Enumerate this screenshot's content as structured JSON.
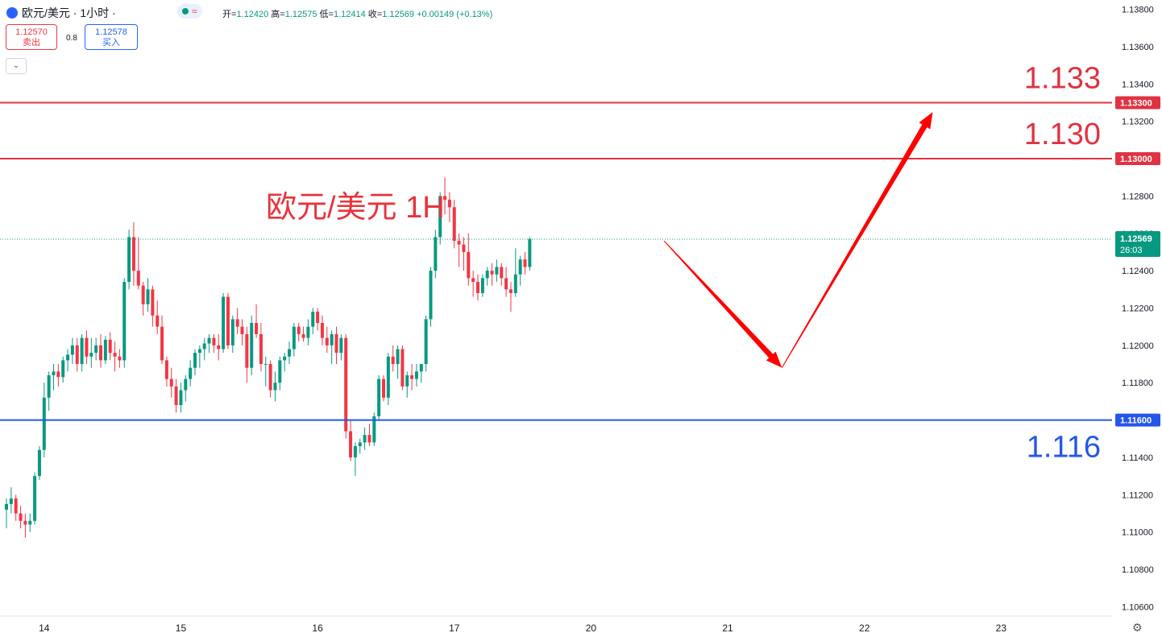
{
  "header": {
    "symbol": "欧元/美元 · 1小时 ·",
    "status_icon": "≈",
    "open_label": "开=",
    "open": "1.12420",
    "high_label": "高=",
    "high": "1.12575",
    "low_label": "低=",
    "low": "1.12414",
    "close_label": "收=",
    "close": "1.12569",
    "change": "+0.00149 (+0.13%)"
  },
  "trade": {
    "sell_price": "1.12570",
    "sell_label": "卖出",
    "spread": "0.8",
    "buy_price": "1.12578",
    "buy_label": "买入"
  },
  "collapse_icon": "chevron-down-icon",
  "colors": {
    "up": "#089981",
    "down": "#f23645",
    "resistance": "#e03341",
    "support": "#2456e8",
    "arrow": "#ff0000"
  },
  "chart_data": {
    "type": "candlestick",
    "title": "欧元/美元 1H",
    "yrange": [
      1.1055,
      1.1385
    ],
    "y_ticks": [
      "1.13800",
      "1.13600",
      "1.13400",
      "1.13200",
      "1.13000",
      "1.12800",
      "1.12600",
      "1.12400",
      "1.12200",
      "1.12000",
      "1.11800",
      "1.11600",
      "1.11400",
      "1.11200",
      "1.11000",
      "1.10800",
      "1.10600"
    ],
    "x_ticks": [
      "14",
      "15",
      "16",
      "17",
      "20",
      "21",
      "22",
      "23"
    ],
    "x_ticks_bar": [
      8,
      37,
      66,
      95,
      124,
      153,
      182,
      211
    ],
    "last_price": "1.12569",
    "countdown": "26:03",
    "levels": [
      {
        "value": 1.133,
        "label": "1.13300",
        "annotation": "1.133",
        "kind": "resistance"
      },
      {
        "value": 1.13,
        "label": "1.13000",
        "annotation": "1.130",
        "kind": "resistance"
      },
      {
        "value": 1.116,
        "label": "1.11600",
        "annotation": "1.116",
        "kind": "support"
      }
    ],
    "forecast_path": [
      {
        "bar": 139.5,
        "price": 1.1256
      },
      {
        "bar": 164.5,
        "price": 1.1188
      },
      {
        "bar": 196.5,
        "price": 1.1325
      }
    ],
    "candles": [
      [
        1.1112,
        1.1118,
        1.1102,
        1.1115
      ],
      [
        1.1115,
        1.1124,
        1.111,
        1.1118
      ],
      [
        1.1118,
        1.112,
        1.1106,
        1.111
      ],
      [
        1.111,
        1.1114,
        1.1102,
        1.1106
      ],
      [
        1.1106,
        1.111,
        1.1097,
        1.1104
      ],
      [
        1.1104,
        1.111,
        1.11,
        1.1106
      ],
      [
        1.1106,
        1.1132,
        1.1104,
        1.113
      ],
      [
        1.113,
        1.1146,
        1.1128,
        1.1144
      ],
      [
        1.1144,
        1.118,
        1.114,
        1.1172
      ],
      [
        1.1172,
        1.1186,
        1.1165,
        1.1184
      ],
      [
        1.1184,
        1.119,
        1.1176,
        1.1186
      ],
      [
        1.1186,
        1.119,
        1.1178,
        1.1183
      ],
      [
        1.1183,
        1.1194,
        1.118,
        1.1192
      ],
      [
        1.1192,
        1.1198,
        1.1186,
        1.1195
      ],
      [
        1.1195,
        1.1204,
        1.119,
        1.12
      ],
      [
        1.12,
        1.1204,
        1.1186,
        1.119
      ],
      [
        1.119,
        1.1206,
        1.1186,
        1.1204
      ],
      [
        1.1204,
        1.1208,
        1.119,
        1.1194
      ],
      [
        1.1194,
        1.1204,
        1.1188,
        1.1196
      ],
      [
        1.1196,
        1.1204,
        1.1192,
        1.12
      ],
      [
        1.12,
        1.1206,
        1.1188,
        1.1192
      ],
      [
        1.1192,
        1.1205,
        1.119,
        1.1203
      ],
      [
        1.1203,
        1.1207,
        1.1192,
        1.1196
      ],
      [
        1.1196,
        1.1202,
        1.1186,
        1.1194
      ],
      [
        1.1194,
        1.1198,
        1.1188,
        1.1192
      ],
      [
        1.1192,
        1.1236,
        1.1188,
        1.1234
      ],
      [
        1.1234,
        1.1262,
        1.123,
        1.1258
      ],
      [
        1.1258,
        1.1266,
        1.1232,
        1.124
      ],
      [
        1.124,
        1.1258,
        1.123,
        1.1232
      ],
      [
        1.1232,
        1.1234,
        1.1216,
        1.1222
      ],
      [
        1.1222,
        1.1236,
        1.1218,
        1.123
      ],
      [
        1.123,
        1.1232,
        1.121,
        1.1216
      ],
      [
        1.1216,
        1.1224,
        1.1206,
        1.121
      ],
      [
        1.121,
        1.1216,
        1.119,
        1.1192
      ],
      [
        1.1192,
        1.1194,
        1.1178,
        1.1182
      ],
      [
        1.1182,
        1.1188,
        1.1172,
        1.1178
      ],
      [
        1.1178,
        1.1182,
        1.1164,
        1.1168
      ],
      [
        1.1168,
        1.118,
        1.1164,
        1.1176
      ],
      [
        1.1176,
        1.1184,
        1.117,
        1.1182
      ],
      [
        1.1182,
        1.1192,
        1.1178,
        1.1188
      ],
      [
        1.1188,
        1.1198,
        1.1184,
        1.1196
      ],
      [
        1.1196,
        1.12,
        1.1188,
        1.1198
      ],
      [
        1.1198,
        1.1204,
        1.1192,
        1.1201
      ],
      [
        1.1201,
        1.1206,
        1.1196,
        1.1204
      ],
      [
        1.1204,
        1.1206,
        1.1196,
        1.12
      ],
      [
        1.12,
        1.1206,
        1.1192,
        1.1198
      ],
      [
        1.1198,
        1.1228,
        1.1196,
        1.1226
      ],
      [
        1.1226,
        1.1228,
        1.1198,
        1.12
      ],
      [
        1.12,
        1.1216,
        1.1196,
        1.1214
      ],
      [
        1.1214,
        1.122,
        1.1206,
        1.121
      ],
      [
        1.121,
        1.1214,
        1.12,
        1.1206
      ],
      [
        1.1206,
        1.121,
        1.118,
        1.1188
      ],
      [
        1.1188,
        1.1216,
        1.1184,
        1.1212
      ],
      [
        1.1212,
        1.1222,
        1.1204,
        1.1206
      ],
      [
        1.1206,
        1.1212,
        1.1186,
        1.119
      ],
      [
        1.119,
        1.1194,
        1.1178,
        1.119
      ],
      [
        1.119,
        1.1192,
        1.1172,
        1.1176
      ],
      [
        1.1176,
        1.1186,
        1.117,
        1.118
      ],
      [
        1.118,
        1.1194,
        1.1176,
        1.1192
      ],
      [
        1.1192,
        1.1196,
        1.1186,
        1.1194
      ],
      [
        1.1194,
        1.1202,
        1.119,
        1.1198
      ],
      [
        1.1198,
        1.1212,
        1.1194,
        1.121
      ],
      [
        1.121,
        1.1212,
        1.1202,
        1.1206
      ],
      [
        1.1206,
        1.121,
        1.1202,
        1.1204
      ],
      [
        1.1204,
        1.1214,
        1.12,
        1.121
      ],
      [
        1.121,
        1.122,
        1.1206,
        1.1218
      ],
      [
        1.1218,
        1.122,
        1.1208,
        1.1212
      ],
      [
        1.1212,
        1.1216,
        1.12,
        1.1204
      ],
      [
        1.1204,
        1.121,
        1.1196,
        1.12
      ],
      [
        1.12,
        1.1208,
        1.119,
        1.1206
      ],
      [
        1.1206,
        1.121,
        1.119,
        1.1196
      ],
      [
        1.1196,
        1.1206,
        1.1192,
        1.1204
      ],
      [
        1.1204,
        1.1206,
        1.115,
        1.1154
      ],
      [
        1.1154,
        1.116,
        1.1138,
        1.114
      ],
      [
        1.114,
        1.1148,
        1.113,
        1.1146
      ],
      [
        1.1146,
        1.115,
        1.1142,
        1.1148
      ],
      [
        1.1148,
        1.1156,
        1.1144,
        1.1152
      ],
      [
        1.1152,
        1.1158,
        1.1146,
        1.1148
      ],
      [
        1.1148,
        1.1164,
        1.1146,
        1.1162
      ],
      [
        1.1162,
        1.1184,
        1.116,
        1.1182
      ],
      [
        1.1182,
        1.1184,
        1.117,
        1.1172
      ],
      [
        1.1172,
        1.1196,
        1.1168,
        1.1194
      ],
      [
        1.1194,
        1.12,
        1.1186,
        1.119
      ],
      [
        1.119,
        1.12,
        1.1182,
        1.1198
      ],
      [
        1.1198,
        1.12,
        1.1176,
        1.1178
      ],
      [
        1.1178,
        1.1186,
        1.1172,
        1.1184
      ],
      [
        1.1184,
        1.119,
        1.1176,
        1.1182
      ],
      [
        1.1182,
        1.119,
        1.1178,
        1.1186
      ],
      [
        1.1186,
        1.119,
        1.118,
        1.119
      ],
      [
        1.119,
        1.1216,
        1.1186,
        1.1214
      ],
      [
        1.1214,
        1.1242,
        1.121,
        1.124
      ],
      [
        1.124,
        1.1262,
        1.1236,
        1.1258
      ],
      [
        1.1258,
        1.1282,
        1.1254,
        1.128
      ],
      [
        1.128,
        1.129,
        1.127,
        1.1278
      ],
      [
        1.1278,
        1.1282,
        1.1266,
        1.1274
      ],
      [
        1.1274,
        1.1278,
        1.1252,
        1.1256
      ],
      [
        1.1256,
        1.126,
        1.1242,
        1.1254
      ],
      [
        1.1254,
        1.1258,
        1.124,
        1.125
      ],
      [
        1.125,
        1.126,
        1.1232,
        1.1236
      ],
      [
        1.1236,
        1.124,
        1.1226,
        1.1234
      ],
      [
        1.1234,
        1.1238,
        1.1224,
        1.1228
      ],
      [
        1.1228,
        1.1238,
        1.1226,
        1.1236
      ],
      [
        1.1236,
        1.1242,
        1.1232,
        1.124
      ],
      [
        1.124,
        1.1244,
        1.1232,
        1.1238
      ],
      [
        1.1238,
        1.1246,
        1.1234,
        1.1242
      ],
      [
        1.1242,
        1.1244,
        1.1232,
        1.1236
      ],
      [
        1.1236,
        1.1242,
        1.1226,
        1.123
      ],
      [
        1.123,
        1.1234,
        1.1218,
        1.1228
      ],
      [
        1.1228,
        1.1252,
        1.1226,
        1.1238
      ],
      [
        1.1238,
        1.1248,
        1.1232,
        1.1246
      ],
      [
        1.1246,
        1.125,
        1.1238,
        1.1242
      ],
      [
        1.1242,
        1.1258,
        1.124,
        1.1257
      ]
    ]
  }
}
